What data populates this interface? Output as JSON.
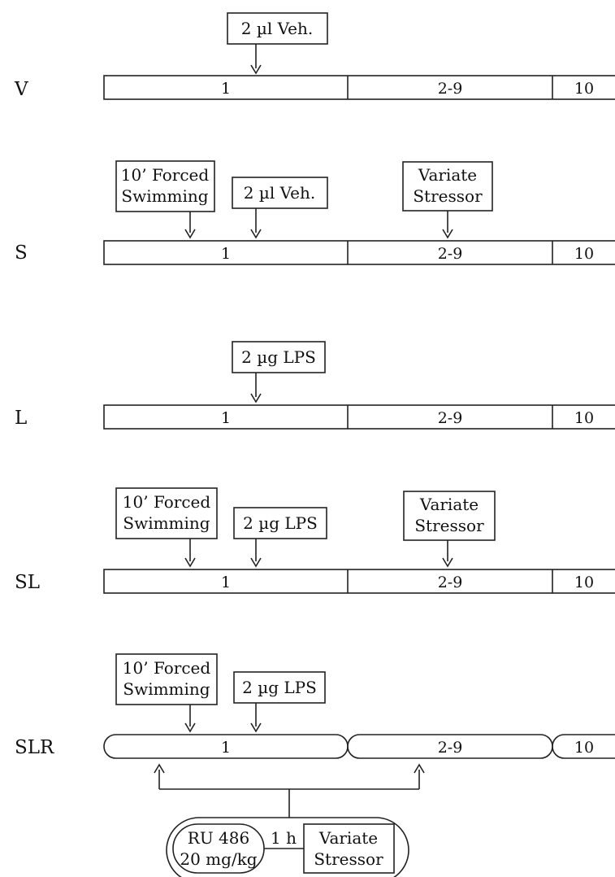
{
  "colors": {
    "stroke": "#222222",
    "white": "#ffffff",
    "gray": "#bdbdbd",
    "dot_light_bg": "#fafafa",
    "dot_dark_bg": "#b8b8b8",
    "dot": "#777777"
  },
  "groups": [
    {
      "label": "V",
      "fill": "white",
      "shape": "rect",
      "segments": [
        "1",
        "2-9",
        "10"
      ],
      "boxes": [
        {
          "lines": [
            "2 µl Veh."
          ],
          "fill": "white"
        }
      ]
    },
    {
      "label": "S",
      "fill": "gray",
      "shape": "rect",
      "segments": [
        "1",
        "2-9",
        "10"
      ],
      "boxes": [
        {
          "lines": [
            "10’ Forced",
            "Swimming"
          ],
          "fill": "gray"
        },
        {
          "lines": [
            "2 µl Veh."
          ],
          "fill": "white"
        },
        {
          "lines": [
            "Variate",
            "Stressor"
          ],
          "fill": "gray"
        }
      ]
    },
    {
      "label": "L",
      "fill": "dot-light",
      "shape": "rect",
      "segments": [
        "1",
        "2-9",
        "10"
      ],
      "boxes": [
        {
          "lines": [
            "2 µg LPS"
          ],
          "fill": "dot-light"
        }
      ]
    },
    {
      "label": "SL",
      "fill": "dot-dark",
      "shape": "rect",
      "segments": [
        "1",
        "2-9",
        "10"
      ],
      "boxes": [
        {
          "lines": [
            "10’ Forced",
            "Swimming"
          ],
          "fill": "gray"
        },
        {
          "lines": [
            "2 µg LPS"
          ],
          "fill": "dot-light"
        },
        {
          "lines": [
            "Variate",
            "Stressor"
          ],
          "fill": "gray"
        }
      ]
    },
    {
      "label": "SLR",
      "fill": "dot-dark",
      "shape": "pill",
      "segments": [
        "1",
        "2-9",
        "10"
      ],
      "boxes": [
        {
          "lines": [
            "10’ Forced",
            "Swimming"
          ],
          "fill": "gray"
        },
        {
          "lines": [
            "2 µg LPS"
          ],
          "fill": "dot-light"
        }
      ]
    }
  ],
  "treatment": {
    "drug_lines": [
      "RU 486",
      "20 mg/kg"
    ],
    "interval": "1 h",
    "stressor_lines": [
      "Variate",
      "Stressor"
    ]
  }
}
